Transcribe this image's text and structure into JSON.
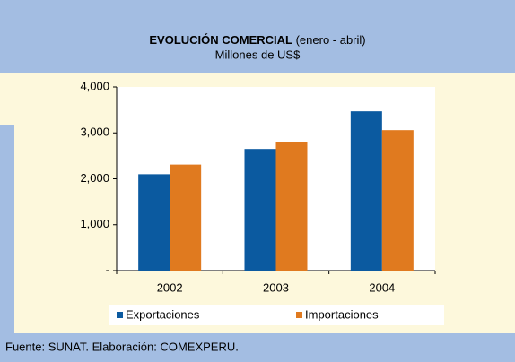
{
  "chart_data": {
    "type": "bar",
    "title": "EVOLUCIÓN COMERCIAL",
    "title_suffix": " (enero - abril)",
    "subtitle": "Millones de US$",
    "categories": [
      "2002",
      "2003",
      "2004"
    ],
    "series": [
      {
        "name": "Exportaciones",
        "color": "#0b5aa0",
        "values": [
          2100,
          2650,
          3470
        ]
      },
      {
        "name": "Importaciones",
        "color": "#e07a1f",
        "values": [
          2310,
          2800,
          3060
        ]
      }
    ],
    "ylim": [
      0,
      4000
    ],
    "yticks": [
      {
        "value": 0,
        "label": "-"
      },
      {
        "value": 1000,
        "label": "1,000"
      },
      {
        "value": 2000,
        "label": "2,000"
      },
      {
        "value": 3000,
        "label": "3,000"
      },
      {
        "value": 4000,
        "label": "4,000"
      }
    ],
    "legend": "bottom",
    "source": "Fuente: SUNAT. Elaboración: COMEXPERU."
  }
}
